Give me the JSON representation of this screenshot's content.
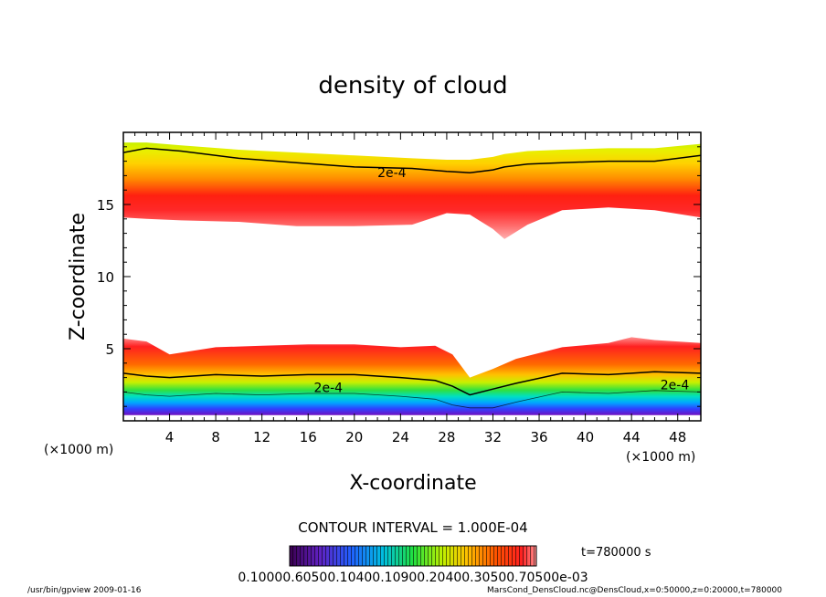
{
  "chart_data": {
    "type": "heatmap",
    "title": "density of cloud",
    "xlabel": "X-coordinate",
    "ylabel": "Z-coordinate",
    "x_unit": "(×1000 m)",
    "y_unit": "(×1000 m)",
    "xlim": [
      0,
      50
    ],
    "ylim": [
      0,
      20
    ],
    "x_ticks": [
      "4",
      "8",
      "12",
      "16",
      "20",
      "24",
      "28",
      "32",
      "36",
      "40",
      "44",
      "48"
    ],
    "y_ticks": [
      "5",
      "10",
      "15"
    ],
    "contour_interval": "CONTOUR INTERVAL = 1.000E-04",
    "contour_labels": [
      "2e-4",
      "2e-4",
      "2e-4"
    ],
    "time_label": "t=780000 s",
    "colorbar_ticks": "0.10000.60500.10400.10900.20400.30500.70500e-03",
    "upper_layer": {
      "x": [
        0,
        2,
        5,
        10,
        15,
        20,
        25,
        28,
        30,
        32,
        33,
        35,
        38,
        42,
        46,
        50
      ],
      "top": [
        19.3,
        19.3,
        19.1,
        18.8,
        18.6,
        18.4,
        18.2,
        18.1,
        18.1,
        18.3,
        18.5,
        18.7,
        18.8,
        18.9,
        18.9,
        19.2
      ],
      "bottom": [
        14.1,
        14.0,
        13.9,
        13.8,
        13.5,
        13.5,
        13.6,
        14.4,
        14.3,
        13.3,
        12.6,
        13.6,
        14.6,
        14.8,
        14.6,
        14.1
      ],
      "contour_2e-4": [
        18.6,
        18.9,
        18.7,
        18.2,
        17.9,
        17.6,
        17.5,
        17.3,
        17.2,
        17.4,
        17.6,
        17.8,
        17.9,
        18.0,
        18.0,
        18.4
      ]
    },
    "lower_layer": {
      "x": [
        0,
        2,
        4,
        8,
        12,
        16,
        20,
        24,
        27,
        28.5,
        30,
        32,
        34,
        38,
        42,
        44,
        46,
        50
      ],
      "top": [
        5.7,
        5.5,
        4.6,
        5.1,
        5.2,
        5.3,
        5.3,
        5.1,
        5.2,
        4.6,
        3.0,
        3.6,
        4.3,
        5.1,
        5.4,
        5.8,
        5.6,
        5.4
      ],
      "contour_2e-4": [
        3.3,
        3.1,
        3.0,
        3.2,
        3.1,
        3.2,
        3.2,
        3.0,
        2.8,
        2.4,
        1.8,
        2.2,
        2.6,
        3.3,
        3.2,
        3.3,
        3.4,
        3.3
      ],
      "base": 0.4
    }
  },
  "footer": {
    "left": "/usr/bin/gpview   2009-01-16",
    "right": "MarsCond_DensCloud.nc@DensCloud,x=0:50000,z=0:20000,t=780000"
  }
}
